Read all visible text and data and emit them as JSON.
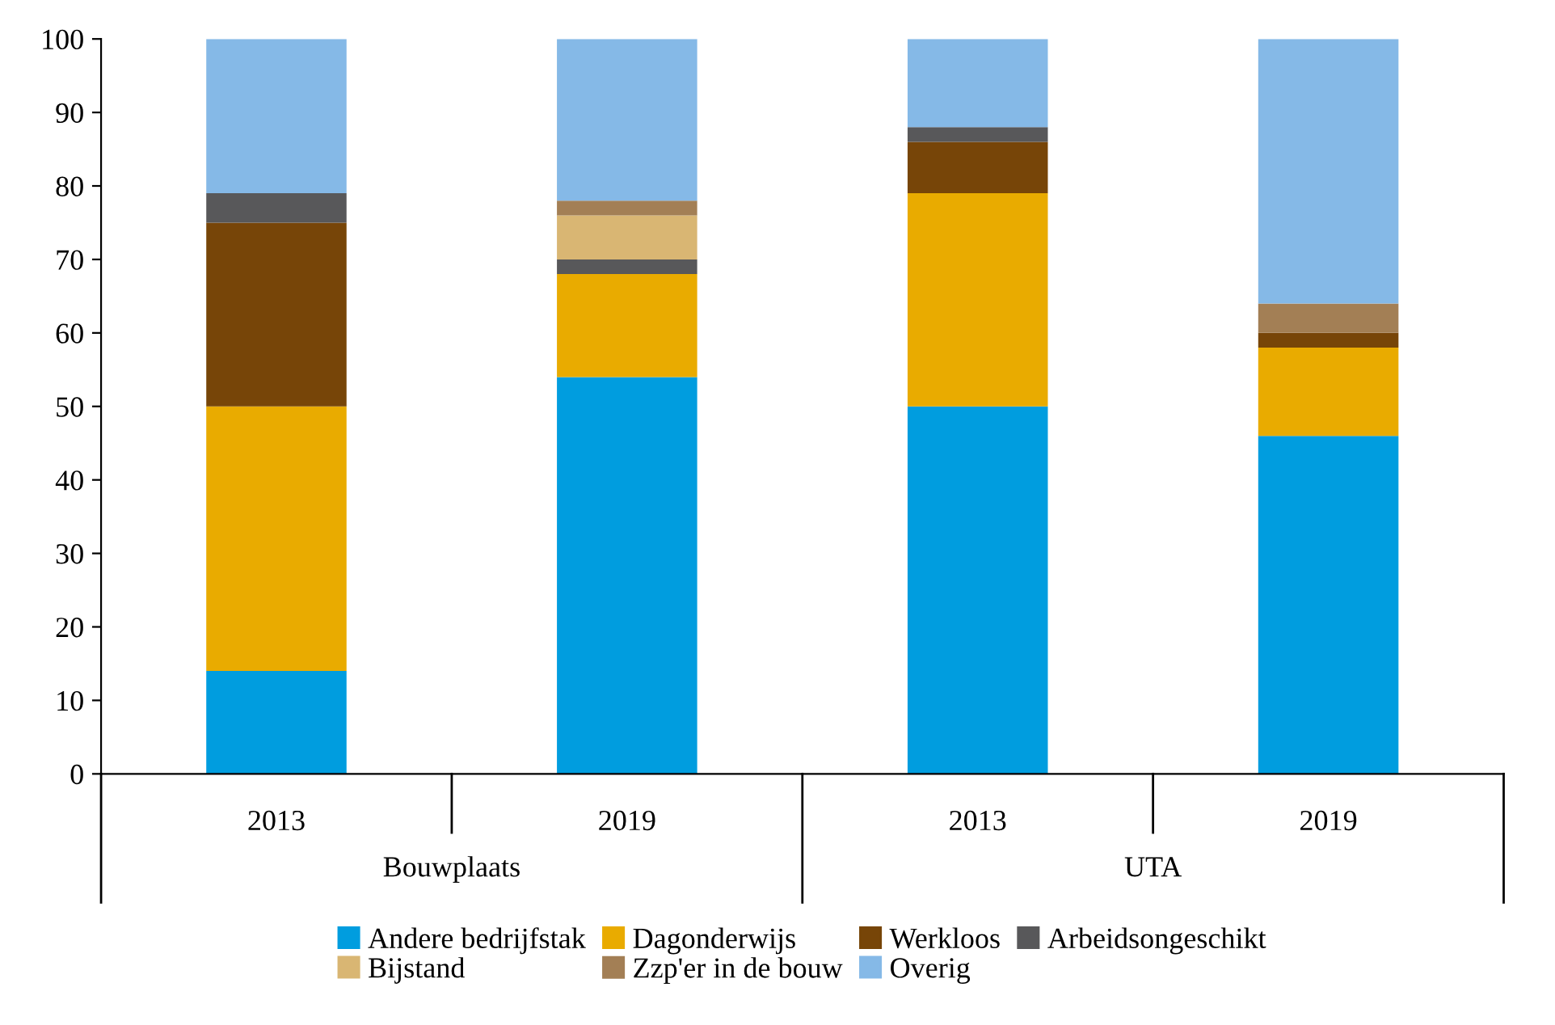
{
  "chart_data": {
    "type": "bar",
    "stacked": true,
    "categories": [
      "2013",
      "2019",
      "2013",
      "2019"
    ],
    "series": [
      {
        "name": "Andere bedrijfstak",
        "color": "#009ddf",
        "values": [
          14,
          54,
          50,
          46
        ]
      },
      {
        "name": "Dagonderwijs",
        "color": "#e9ab00",
        "values": [
          36,
          14,
          29,
          12
        ]
      },
      {
        "name": "Werkloos",
        "color": "#774508",
        "values": [
          25,
          0,
          7,
          2
        ]
      },
      {
        "name": "Arbeidsongeschikt",
        "color": "#58585a",
        "values": [
          4,
          2,
          2,
          0
        ]
      },
      {
        "name": "Bijstand",
        "color": "#d9b673",
        "values": [
          0,
          6,
          0,
          0
        ]
      },
      {
        "name": "Zzp'er in de bouw",
        "color": "#a37f55",
        "values": [
          0,
          2,
          0,
          4
        ]
      },
      {
        "name": "Overig",
        "color": "#85b9e7",
        "values": [
          21,
          22,
          12,
          36
        ]
      }
    ],
    "annotations": [
      "Bouwplaats",
      "UTA"
    ],
    "ylim": [
      0,
      100
    ],
    "yticks": [
      0,
      10,
      20,
      30,
      40,
      50,
      60,
      70,
      80,
      90,
      100
    ],
    "grid": false,
    "legend": "bottom"
  }
}
